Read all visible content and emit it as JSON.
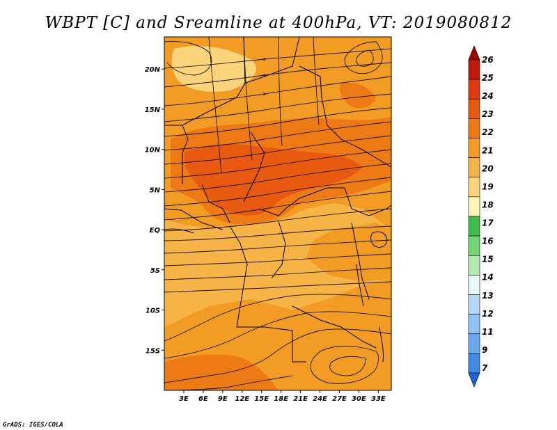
{
  "title": "WBPT [C] and Sreamline at 400hPa, VT: 2019080812",
  "credit": "GrADS: IGES/COLA",
  "map": {
    "lon_range": [
      0,
      35
    ],
    "lat_range": [
      -20,
      24
    ],
    "lat_labels": [
      {
        "lat": 20,
        "label": "20N"
      },
      {
        "lat": 15,
        "label": "15N"
      },
      {
        "lat": 10,
        "label": "10N"
      },
      {
        "lat": 5,
        "label": "5N"
      },
      {
        "lat": 0,
        "label": "EQ"
      },
      {
        "lat": -5,
        "label": "5S"
      },
      {
        "lat": -10,
        "label": "10S"
      },
      {
        "lat": -15,
        "label": "15S"
      }
    ],
    "lon_labels": [
      {
        "lon": 3,
        "label": "3E"
      },
      {
        "lon": 6,
        "label": "6E"
      },
      {
        "lon": 9,
        "label": "9E"
      },
      {
        "lon": 12,
        "label": "12E"
      },
      {
        "lon": 15,
        "label": "15E"
      },
      {
        "lon": 18,
        "label": "18E"
      },
      {
        "lon": 21,
        "label": "21E"
      },
      {
        "lon": 24,
        "label": "24E"
      },
      {
        "lon": 27,
        "label": "27E"
      },
      {
        "lon": 30,
        "label": "30E"
      },
      {
        "lon": 33,
        "label": "33E"
      }
    ],
    "colors": {
      "c20_21": "#f6b447",
      "c21_22": "#f29c25",
      "c22_23": "#ed7a14",
      "c23_24": "#e85a10",
      "c19_20": "#fcd47c",
      "streamline": "#1a1200",
      "border": "#000000"
    }
  },
  "colorbar": {
    "labels": [
      "26",
      "25",
      "24",
      "23",
      "22",
      "21",
      "20",
      "19",
      "18",
      "17",
      "16",
      "15",
      "14",
      "13",
      "12",
      "11",
      "9",
      "7"
    ],
    "colors": [
      "#a00000",
      "#c01a0a",
      "#e03a10",
      "#e85a10",
      "#ed7a14",
      "#f29c25",
      "#f6b447",
      "#fcd47c",
      "#fff5b4",
      "#3fbf4a",
      "#72d672",
      "#b4ecb0",
      "#e6f8f8",
      "#b4d8f8",
      "#90c2f5",
      "#6aa8ef",
      "#3f8ae4",
      "#1f62d2"
    ]
  }
}
